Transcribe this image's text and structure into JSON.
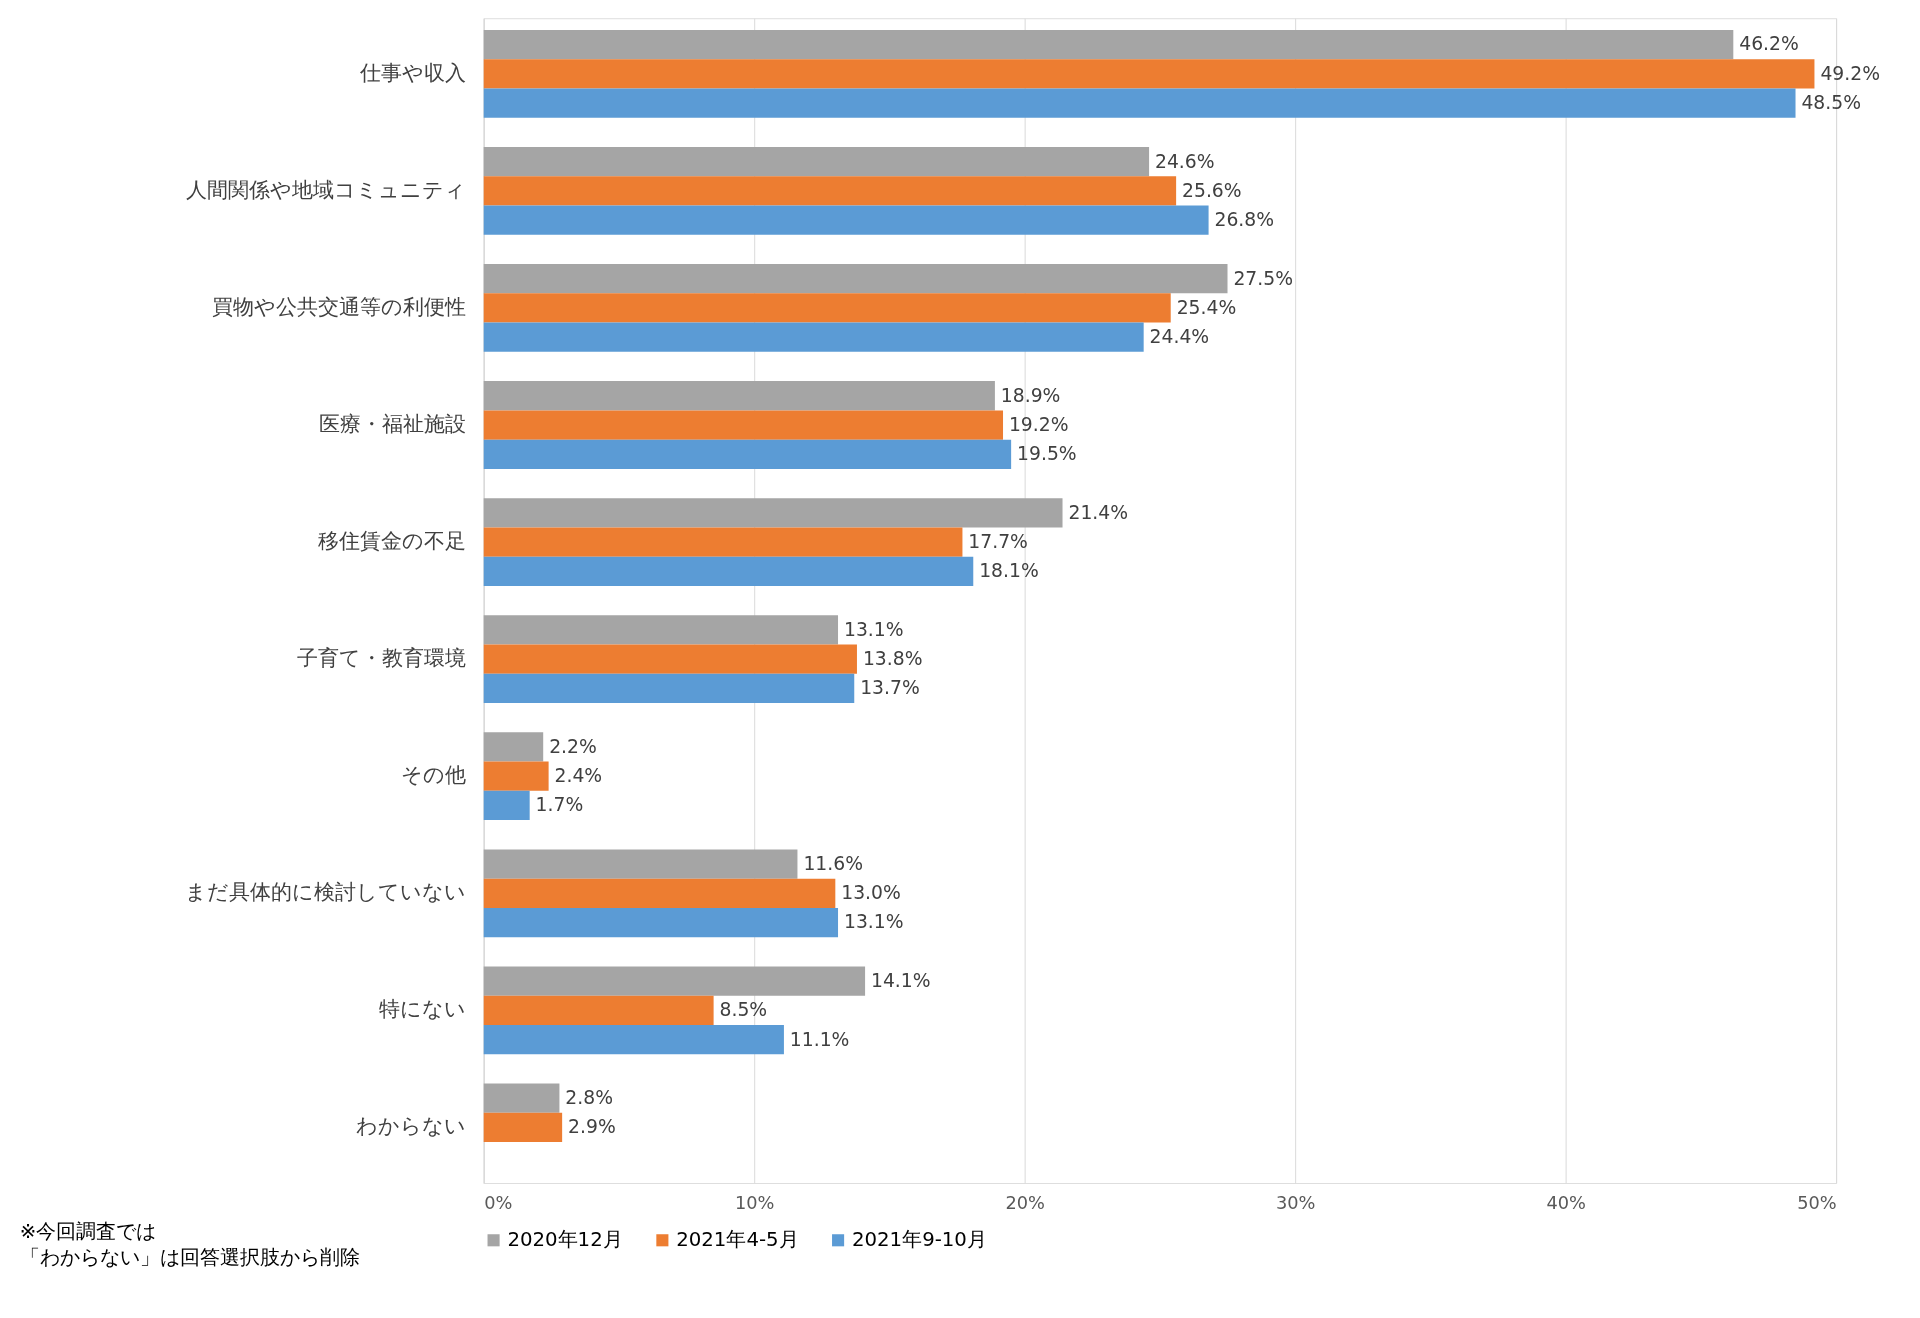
{
  "chart_data": {
    "type": "bar",
    "orientation": "horizontal",
    "categories": [
      "仕事や収入",
      "人間関係や地域コミュニティ",
      "買物や公共交通等の利便性",
      "医療・福祉施設",
      "移住賃金の不足",
      "子育て・教育環境",
      "その他",
      "まだ具体的に検討していない",
      "特にない",
      "わからない"
    ],
    "series": [
      {
        "name": "2020年12月",
        "color": "#a5a5a5",
        "values": [
          46.2,
          24.6,
          27.5,
          18.9,
          21.4,
          13.1,
          2.2,
          11.6,
          14.1,
          2.8
        ],
        "value_labels": [
          "46.2%",
          "24.6%",
          "27.5%",
          "18.9%",
          "21.4%",
          "13.1%",
          "2.2%",
          "11.6%",
          "14.1%",
          "2.8%"
        ]
      },
      {
        "name": "2021年4-5月",
        "color": "#ed7d31",
        "values": [
          49.2,
          25.6,
          25.4,
          19.2,
          17.7,
          13.8,
          2.4,
          13.0,
          8.5,
          2.9
        ],
        "value_labels": [
          "49.2%",
          "25.6%",
          "25.4%",
          "19.2%",
          "17.7%",
          "13.8%",
          "2.4%",
          "13.0%",
          "8.5%",
          "2.9%"
        ]
      },
      {
        "name": "2021年9-10月",
        "color": "#5b9bd5",
        "values": [
          48.5,
          26.8,
          24.4,
          19.5,
          18.1,
          13.7,
          1.7,
          13.1,
          11.1,
          null
        ],
        "value_labels": [
          "48.5%",
          "26.8%",
          "24.4%",
          "19.5%",
          "18.1%",
          "13.7%",
          "1.7%",
          "13.1%",
          "11.1%",
          null
        ]
      }
    ],
    "xlim": [
      0,
      50
    ],
    "xticks": [
      {
        "value": 0,
        "label": "0%"
      },
      {
        "value": 10,
        "label": "10%"
      },
      {
        "value": 20,
        "label": "20%"
      },
      {
        "value": 30,
        "label": "30%"
      },
      {
        "value": 40,
        "label": "40%"
      },
      {
        "value": 50,
        "label": "50%"
      }
    ],
    "grid": "x",
    "legend": "bottom",
    "annotations": [
      "※今回調査では",
      "「わからない」は回答選択肢から削除"
    ]
  }
}
